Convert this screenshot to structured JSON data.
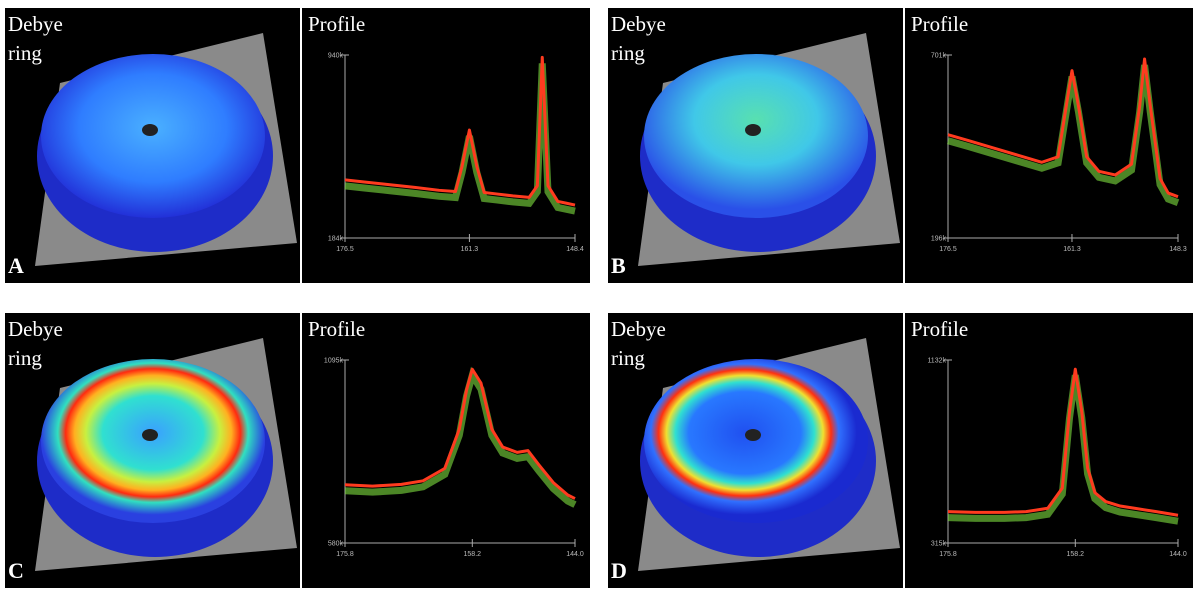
{
  "panels": [
    {
      "label": "A",
      "image_title": "Debye ring"
    },
    {
      "label": "B",
      "image_title": "Debye ring"
    },
    {
      "label": "C",
      "image_title": "Debye ring"
    },
    {
      "label": "D",
      "image_title": "Debye ring"
    }
  ],
  "chart_data": [
    {
      "type": "line",
      "title": "Profile",
      "color": "#ff3b1f",
      "x": [
        176.5,
        174,
        171,
        168,
        165,
        163,
        162.2,
        161.3,
        160.4,
        159.5,
        158,
        156,
        154,
        153,
        152.4,
        151.7,
        150.5,
        149.5,
        148.4
      ],
      "values": [
        424000,
        415000,
        404000,
        393000,
        381000,
        376000,
        480000,
        630000,
        480000,
        372000,
        366000,
        358000,
        352000,
        400000,
        930000,
        400000,
        335000,
        328000,
        320000
      ],
      "xlim": [
        176.5,
        148.4
      ],
      "xticks": [
        176.5,
        161.3,
        148.4
      ],
      "ylim": [
        184000,
        940000
      ],
      "yticks": [
        {
          "value": 184000,
          "label": "184k"
        },
        {
          "value": 940000,
          "label": "940k"
        }
      ]
    },
    {
      "type": "line",
      "title": "Profile",
      "color": "#ff3b1f",
      "x": [
        176.5,
        174,
        171,
        168,
        165,
        163,
        162,
        161.3,
        160.5,
        159.5,
        158,
        156,
        154,
        153,
        152.4,
        151.7,
        150.5,
        149.5,
        148.3
      ],
      "values": [
        481000,
        465000,
        445000,
        425000,
        405000,
        420000,
        560000,
        658000,
        560000,
        420000,
        380000,
        370000,
        400000,
        560000,
        690000,
        560000,
        360000,
        320000,
        310000
      ],
      "xlim": [
        176.5,
        148.3
      ],
      "xticks": [
        176.5,
        161.3,
        148.3
      ],
      "ylim": [
        196000,
        701000
      ],
      "yticks": [
        {
          "value": 196000,
          "label": "196k"
        },
        {
          "value": 701000,
          "label": "701k"
        }
      ]
    },
    {
      "type": "line",
      "title": "Profile",
      "color": "#ff3b1f",
      "x": [
        175.8,
        172,
        168,
        165,
        162,
        160,
        159,
        158.2,
        157,
        155.5,
        154,
        152,
        150.5,
        149,
        147,
        145,
        144
      ],
      "values": [
        744000,
        740000,
        745000,
        755000,
        790000,
        900000,
        1010000,
        1069000,
        1030000,
        900000,
        850000,
        835000,
        840000,
        800000,
        750000,
        715000,
        705000
      ],
      "xlim": [
        175.8,
        144
      ],
      "xticks": [
        175.8,
        158.2,
        {
          "value": 144,
          "label": "144.0"
        }
      ],
      "ylim": [
        580000,
        1095000
      ],
      "yticks": [
        {
          "value": 580000,
          "label": "580k"
        },
        {
          "value": 1095000,
          "label": "1095k"
        }
      ]
    },
    {
      "type": "line",
      "title": "Profile",
      "color": "#ff3b1f",
      "x": [
        175.8,
        172,
        168,
        165,
        162,
        160,
        159,
        158.2,
        157.3,
        156.5,
        155.5,
        154,
        152,
        150,
        147,
        144
      ],
      "values": [
        455000,
        452000,
        452000,
        455000,
        470000,
        560000,
        900000,
        1091000,
        900000,
        650000,
        540000,
        500000,
        480000,
        470000,
        455000,
        439000
      ],
      "xlim": [
        175.8,
        144
      ],
      "xticks": [
        175.8,
        158.2,
        {
          "value": 144,
          "label": "144.0"
        }
      ],
      "ylim": [
        315000,
        1132000
      ],
      "yticks": [
        {
          "value": 315000,
          "label": "315k"
        },
        {
          "value": 1132000,
          "label": "1132k"
        }
      ]
    }
  ]
}
